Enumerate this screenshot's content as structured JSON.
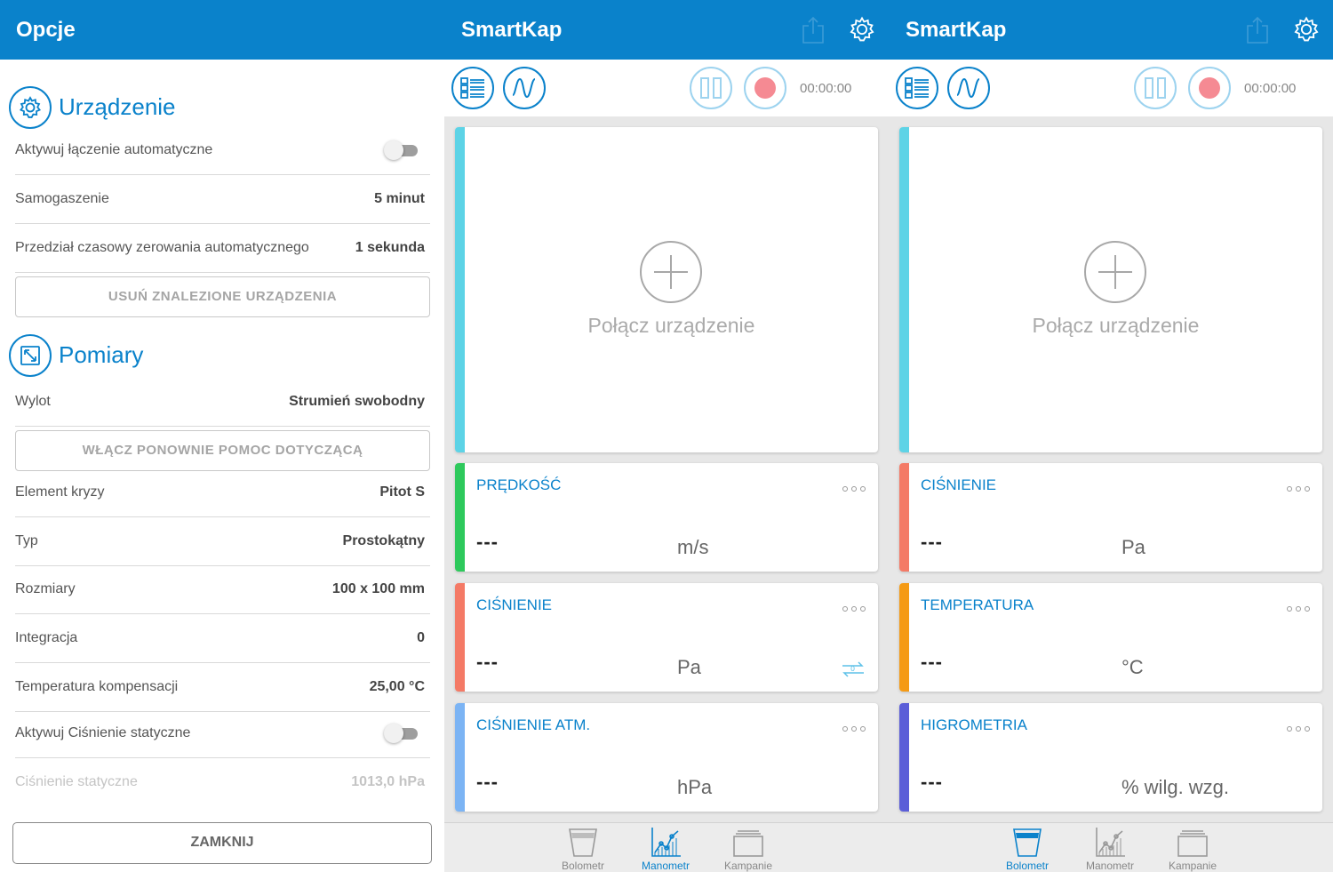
{
  "options": {
    "title": "Opcje",
    "device_section": {
      "heading": "Urządzenie",
      "auto_connect_label": "Aktywuj łączenie automatyczne",
      "auto_off_label": "Samogaszenie",
      "auto_off_value": "5 minut",
      "zero_interval_label": "Przedział czasowy zerowania automatycznego",
      "zero_interval_value": "1 sekunda",
      "remove_devices_button": "USUŃ ZNALEZIONE URZĄDZENIA"
    },
    "measurement_section": {
      "heading": "Pomiary",
      "outlet_label": "Wylot",
      "outlet_value": "Strumień swobodny",
      "help_button": "WŁĄCZ PONOWNIE POMOC DOTYCZĄCĄ",
      "element_label": "Element kryzy",
      "element_value": "Pitot S",
      "type_label": "Typ",
      "type_value": "Prostokątny",
      "size_label": "Rozmiary",
      "size_value": "100 x 100 mm",
      "integration_label": "Integracja",
      "integration_value": "0",
      "comp_temp_label": "Temperatura kompensacji",
      "comp_temp_value": "25,00 °C",
      "static_pressure_toggle_label": "Aktywuj Ciśnienie statyczne",
      "static_pressure_label": "Ciśnienie statyczne",
      "static_pressure_value": "1013,0 hPa"
    },
    "close_button": "ZAMKNIJ"
  },
  "panels": [
    {
      "title": "SmartKap",
      "timer": "00:00:00",
      "connect_label": "Połącz urządzenie",
      "cards": [
        {
          "name": "PRĘDKOŚĆ",
          "value": "---",
          "unit": "m/s",
          "color": "#2ec95c"
        },
        {
          "name": "CIŚNIENIE",
          "value": "---",
          "unit": "Pa",
          "color": "#f47a66"
        },
        {
          "name": "CIŚNIENIE ATM.",
          "value": "---",
          "unit": "hPa",
          "color": "#7cb4f4"
        }
      ],
      "nav": [
        {
          "label": "Bolometr",
          "icon": "cup-icon",
          "active": false
        },
        {
          "label": "Manometr",
          "icon": "chart-icon",
          "active": true
        },
        {
          "label": "Kampanie",
          "icon": "folder-icon",
          "active": false
        }
      ]
    },
    {
      "title": "SmartKap",
      "timer": "00:00:00",
      "connect_label": "Połącz urządzenie",
      "cards": [
        {
          "name": "CIŚNIENIE",
          "value": "---",
          "unit": "Pa",
          "color": "#f47a66"
        },
        {
          "name": "TEMPERATURA",
          "value": "---",
          "unit": "°C",
          "color": "#f59a14"
        },
        {
          "name": "HIGROMETRIA",
          "value": "---",
          "unit": "% wilg. wzg.",
          "color": "#5b5ed8"
        }
      ],
      "nav": [
        {
          "label": "Bolometr",
          "icon": "cup-icon",
          "active": true
        },
        {
          "label": "Manometr",
          "icon": "chart-icon",
          "active": false
        },
        {
          "label": "Kampanie",
          "icon": "folder-icon",
          "active": false
        }
      ]
    }
  ],
  "colors": {
    "accent": "#0a82cb",
    "accent_light": "#9dd3ef",
    "connect_stripe": "#5dd3e6",
    "record": "#f58a93"
  }
}
